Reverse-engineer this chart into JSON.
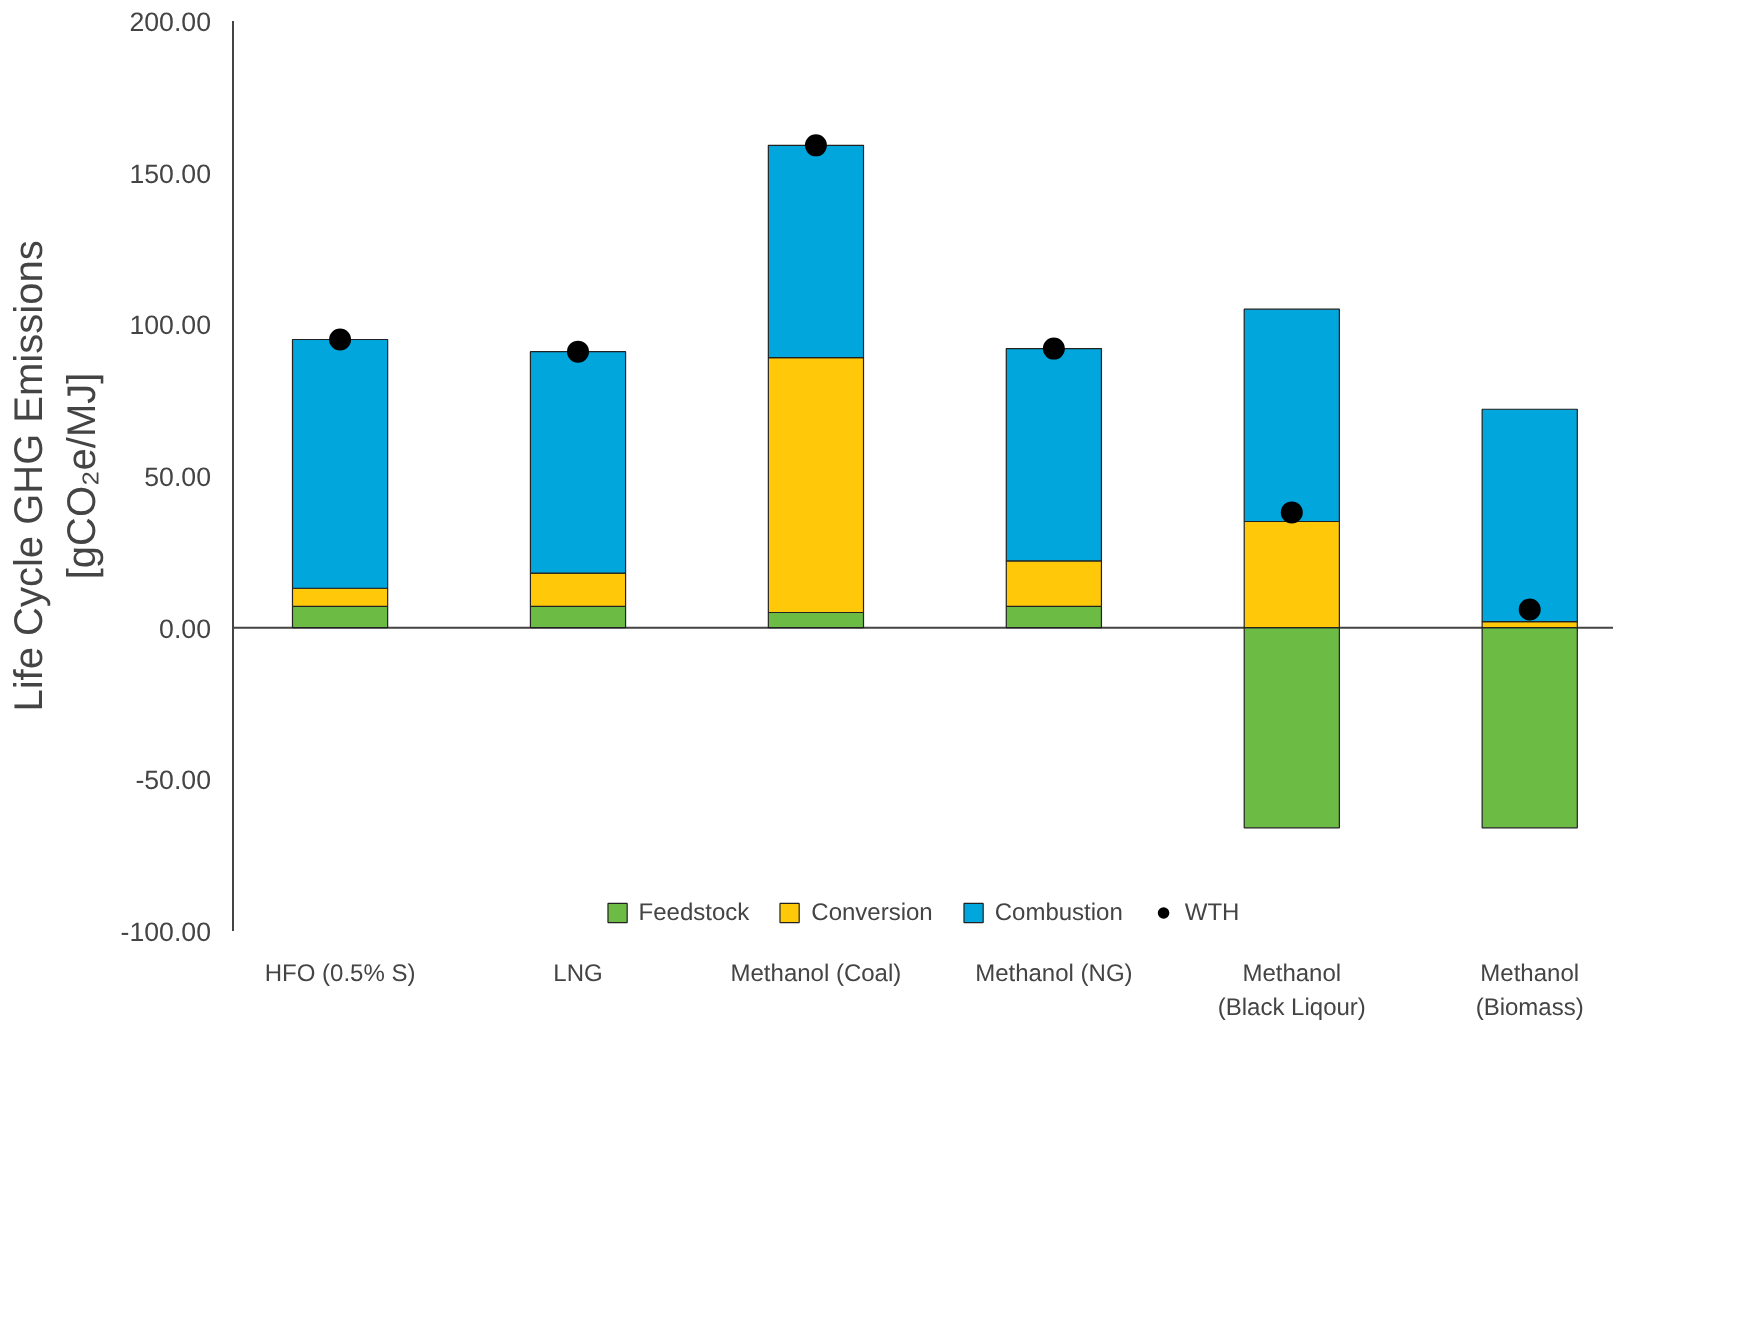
{
  "chart_data": {
    "type": "bar",
    "ylabel": "Life Cycle GHG Emissions\n[gCO₂e/MJ]",
    "categories": [
      "HFO (0.5% S)",
      "LNG",
      "Methanol (Coal)",
      "Methanol (NG)",
      "Methanol\n(Black Liqour)",
      "Methanol\n(Biomass)"
    ],
    "stacked": true,
    "series": [
      {
        "name": "Feedstock",
        "color": "#6cbb44",
        "values": [
          7,
          7,
          5,
          7,
          -66,
          -66
        ]
      },
      {
        "name": "Conversion",
        "color": "#ffc90a",
        "values": [
          6,
          11,
          84,
          15,
          35,
          2
        ]
      },
      {
        "name": "Combustion",
        "color": "#00a6dc",
        "values": [
          82,
          73,
          70,
          70,
          70,
          70
        ]
      },
      {
        "name": "WTH",
        "type": "scatter",
        "marker": "circle",
        "color": "#000000",
        "x": [
          "HFO (0.5% S)",
          "LNG",
          "Methanol (Coal)",
          "Methanol (NG)",
          "Methanol\n(Black Liqour)",
          "Methanol\n(Biomass)"
        ],
        "values": [
          95,
          91,
          159,
          92,
          38,
          6
        ]
      }
    ],
    "ylim": [
      -100,
      200
    ],
    "yticks": [
      {
        "value": -100,
        "label": "-100.00"
      },
      {
        "value": -50,
        "label": "-50.00"
      },
      {
        "value": 0,
        "label": "0.00"
      },
      {
        "value": 50,
        "label": "50.00"
      },
      {
        "value": 100,
        "label": "100.00"
      },
      {
        "value": 150,
        "label": "150.00"
      },
      {
        "value": 200,
        "label": "200.00"
      }
    ],
    "ref_lines": [
      {
        "axis": "y",
        "value": 0,
        "color": "#444444",
        "line_style": "solid"
      }
    ],
    "grid": false,
    "legend": "bottom"
  }
}
